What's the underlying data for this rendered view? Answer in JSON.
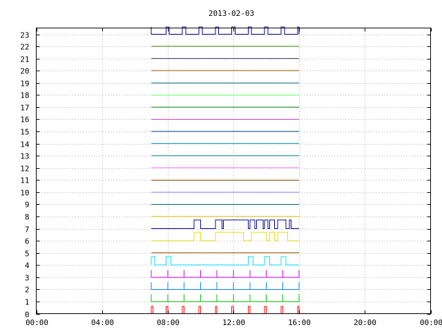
{
  "chart_data": {
    "type": "line",
    "title": "2013-02-03",
    "xlabel": "",
    "ylabel": "",
    "x_ticks": [
      "00:00",
      "04:00",
      "08:00",
      "12:00",
      "16:00",
      "20:00",
      "00:00"
    ],
    "y_ticks": [
      "0",
      "1",
      "2",
      "3",
      "4",
      "5",
      "6",
      "7",
      "8",
      "9",
      "10",
      "11",
      "12",
      "13",
      "14",
      "15",
      "16",
      "17",
      "18",
      "19",
      "20",
      "21",
      "22",
      "23"
    ],
    "xlim_hours": [
      0,
      24
    ],
    "ylim": [
      0,
      23
    ],
    "grid": true,
    "legend": "none",
    "series": [
      {
        "channel": 0,
        "color": "#ff0000",
        "style": "pulses",
        "points": [
          [
            7.0,
            0
          ],
          [
            7.0,
            0.6
          ],
          [
            7.1,
            0.6
          ],
          [
            7.1,
            0
          ],
          [
            7.9,
            0
          ],
          [
            7.9,
            0.6
          ],
          [
            8.0,
            0.6
          ],
          [
            8.0,
            0
          ],
          [
            8.9,
            0
          ],
          [
            8.9,
            0.6
          ],
          [
            9.0,
            0.6
          ],
          [
            9.0,
            0
          ],
          [
            9.9,
            0
          ],
          [
            9.9,
            0.6
          ],
          [
            10.0,
            0.6
          ],
          [
            10.0,
            0
          ],
          [
            10.9,
            0
          ],
          [
            10.9,
            0.6
          ],
          [
            11.0,
            0.6
          ],
          [
            11.0,
            0
          ],
          [
            11.9,
            0
          ],
          [
            11.9,
            0.6
          ],
          [
            12.0,
            0.6
          ],
          [
            12.0,
            0
          ],
          [
            12.9,
            0
          ],
          [
            12.9,
            0.6
          ],
          [
            13.0,
            0.6
          ],
          [
            13.0,
            0
          ],
          [
            13.9,
            0
          ],
          [
            13.9,
            0.6
          ],
          [
            14.0,
            0.6
          ],
          [
            14.0,
            0
          ],
          [
            14.9,
            0
          ],
          [
            14.9,
            0.6
          ],
          [
            15.0,
            0.6
          ],
          [
            15.0,
            0
          ],
          [
            15.9,
            0
          ],
          [
            15.9,
            0.6
          ],
          [
            16.0,
            0.6
          ],
          [
            16.0,
            0
          ]
        ]
      },
      {
        "channel": 1,
        "color": "#00c000",
        "style": "pulses",
        "points": [
          [
            7.0,
            1
          ],
          [
            7.0,
            1.6
          ],
          [
            7.0,
            1
          ],
          [
            8.0,
            1
          ],
          [
            8.0,
            1.6
          ],
          [
            8.0,
            1
          ],
          [
            9.0,
            1
          ],
          [
            9.0,
            1.6
          ],
          [
            9.0,
            1
          ],
          [
            10.0,
            1
          ],
          [
            10.0,
            1.6
          ],
          [
            10.0,
            1
          ],
          [
            11.0,
            1
          ],
          [
            11.0,
            1.6
          ],
          [
            11.0,
            1
          ],
          [
            12.0,
            1
          ],
          [
            12.0,
            1.6
          ],
          [
            12.0,
            1
          ],
          [
            13.0,
            1
          ],
          [
            13.0,
            1.6
          ],
          [
            13.0,
            1
          ],
          [
            14.0,
            1
          ],
          [
            14.0,
            1.6
          ],
          [
            14.0,
            1
          ],
          [
            15.0,
            1
          ],
          [
            15.0,
            1.6
          ],
          [
            15.0,
            1
          ],
          [
            16.0,
            1
          ],
          [
            16.0,
            1.6
          ],
          [
            16.0,
            1
          ]
        ]
      },
      {
        "channel": 2,
        "color": "#0080ff",
        "style": "pulses",
        "points": [
          [
            7.0,
            2
          ],
          [
            7.0,
            2.6
          ],
          [
            7.0,
            2
          ],
          [
            8.0,
            2
          ],
          [
            8.0,
            2.6
          ],
          [
            8.0,
            2
          ],
          [
            9.0,
            2
          ],
          [
            9.0,
            2.6
          ],
          [
            9.0,
            2
          ],
          [
            10.0,
            2
          ],
          [
            10.0,
            2.6
          ],
          [
            10.0,
            2
          ],
          [
            11.0,
            2
          ],
          [
            11.0,
            2.6
          ],
          [
            11.0,
            2
          ],
          [
            12.0,
            2
          ],
          [
            12.0,
            2.6
          ],
          [
            12.0,
            2
          ],
          [
            13.0,
            2
          ],
          [
            13.0,
            2.6
          ],
          [
            13.0,
            2
          ],
          [
            14.0,
            2
          ],
          [
            14.0,
            2.6
          ],
          [
            14.0,
            2
          ],
          [
            15.0,
            2
          ],
          [
            15.0,
            2.6
          ],
          [
            15.0,
            2
          ],
          [
            16.0,
            2
          ],
          [
            16.0,
            2.6
          ],
          [
            16.0,
            2
          ]
        ]
      },
      {
        "channel": 3,
        "color": "#c000ff",
        "style": "pulses",
        "points": [
          [
            7.0,
            3
          ],
          [
            7.0,
            3.6
          ],
          [
            7.0,
            3
          ],
          [
            8.0,
            3
          ],
          [
            8.0,
            3.6
          ],
          [
            8.0,
            3
          ],
          [
            9.0,
            3
          ],
          [
            9.0,
            3.6
          ],
          [
            9.0,
            3
          ],
          [
            10.0,
            3
          ],
          [
            10.0,
            3.6
          ],
          [
            10.0,
            3
          ],
          [
            11.0,
            3
          ],
          [
            11.0,
            3.6
          ],
          [
            11.0,
            3
          ],
          [
            12.0,
            3
          ],
          [
            12.0,
            3.6
          ],
          [
            12.0,
            3
          ],
          [
            13.0,
            3
          ],
          [
            13.0,
            3.6
          ],
          [
            13.0,
            3
          ],
          [
            14.0,
            3
          ],
          [
            14.0,
            3.6
          ],
          [
            14.0,
            3
          ],
          [
            15.0,
            3
          ],
          [
            15.0,
            3.6
          ],
          [
            15.0,
            3
          ],
          [
            16.0,
            3
          ],
          [
            16.0,
            3.6
          ],
          [
            16.0,
            3
          ]
        ]
      },
      {
        "channel": 4,
        "color": "#00e0ff",
        "style": "steps",
        "points": [
          [
            7.0,
            4
          ],
          [
            7.0,
            4.7
          ],
          [
            7.2,
            4.7
          ],
          [
            7.2,
            4
          ],
          [
            7.9,
            4
          ],
          [
            7.9,
            4.7
          ],
          [
            8.2,
            4.7
          ],
          [
            8.2,
            4
          ],
          [
            12.9,
            4
          ],
          [
            12.9,
            4.7
          ],
          [
            13.2,
            4.7
          ],
          [
            13.2,
            4
          ],
          [
            13.9,
            4
          ],
          [
            13.9,
            4.7
          ],
          [
            14.2,
            4.7
          ],
          [
            14.2,
            4
          ],
          [
            14.9,
            4
          ],
          [
            14.9,
            4.7
          ],
          [
            15.2,
            4.7
          ],
          [
            15.2,
            4
          ],
          [
            16.0,
            4
          ]
        ]
      },
      {
        "channel": 5,
        "color": "#a05a00",
        "style": "flat",
        "points": [
          [
            7.0,
            5
          ],
          [
            16.0,
            5
          ]
        ]
      },
      {
        "channel": 6,
        "color": "#e0e000",
        "style": "steps",
        "points": [
          [
            7.0,
            6
          ],
          [
            9.6,
            6
          ],
          [
            9.6,
            6.7
          ],
          [
            10.0,
            6.7
          ],
          [
            10.0,
            6
          ],
          [
            10.9,
            6
          ],
          [
            10.9,
            6.7
          ],
          [
            12.6,
            6.7
          ],
          [
            12.6,
            6
          ],
          [
            13.1,
            6
          ],
          [
            13.1,
            6.7
          ],
          [
            14.0,
            6.7
          ],
          [
            14.0,
            6
          ],
          [
            14.2,
            6
          ],
          [
            14.2,
            6.7
          ],
          [
            14.5,
            6.7
          ],
          [
            14.5,
            6
          ],
          [
            14.7,
            6
          ],
          [
            14.7,
            6.7
          ],
          [
            15.3,
            6.7
          ],
          [
            15.3,
            6
          ],
          [
            16.0,
            6
          ]
        ]
      },
      {
        "channel": 7,
        "color": "#000090",
        "style": "steps",
        "points": [
          [
            7.0,
            7
          ],
          [
            9.6,
            7
          ],
          [
            9.6,
            7.7
          ],
          [
            10.0,
            7.7
          ],
          [
            10.0,
            7
          ],
          [
            10.9,
            7
          ],
          [
            10.9,
            7.7
          ],
          [
            11.3,
            7.7
          ],
          [
            11.3,
            7
          ],
          [
            11.4,
            7
          ],
          [
            11.4,
            7.7
          ],
          [
            12.9,
            7.7
          ],
          [
            12.9,
            7
          ],
          [
            13.0,
            7
          ],
          [
            13.0,
            7.7
          ],
          [
            13.3,
            7.7
          ],
          [
            13.3,
            7
          ],
          [
            13.4,
            7
          ],
          [
            13.4,
            7.7
          ],
          [
            13.8,
            7.7
          ],
          [
            13.8,
            7
          ],
          [
            13.9,
            7
          ],
          [
            13.9,
            7.7
          ],
          [
            14.1,
            7.7
          ],
          [
            14.1,
            7
          ],
          [
            14.2,
            7
          ],
          [
            14.2,
            7.7
          ],
          [
            14.5,
            7.7
          ],
          [
            14.5,
            7
          ],
          [
            14.7,
            7
          ],
          [
            14.7,
            7.7
          ],
          [
            15.2,
            7.7
          ],
          [
            15.2,
            7
          ],
          [
            15.4,
            7
          ],
          [
            15.4,
            7.7
          ],
          [
            15.5,
            7.7
          ],
          [
            15.5,
            7
          ],
          [
            16.0,
            7
          ]
        ]
      },
      {
        "channel": 8,
        "color": "#e0c000",
        "style": "flat",
        "points": [
          [
            7.0,
            8
          ],
          [
            16.0,
            8
          ]
        ]
      },
      {
        "channel": 9,
        "color": "#006060",
        "style": "flat",
        "points": [
          [
            7.0,
            9
          ],
          [
            16.0,
            9
          ]
        ]
      },
      {
        "channel": 10,
        "color": "#8080ff",
        "style": "flat",
        "points": [
          [
            7.0,
            10
          ],
          [
            16.0,
            10
          ]
        ]
      },
      {
        "channel": 11,
        "color": "#804000",
        "style": "flat",
        "points": [
          [
            7.0,
            11
          ],
          [
            16.0,
            11
          ]
        ]
      },
      {
        "channel": 12,
        "color": "#ff80ff",
        "style": "flat",
        "points": [
          [
            7.0,
            12
          ],
          [
            16.0,
            12
          ]
        ]
      },
      {
        "channel": 13,
        "color": "#008080",
        "style": "flat",
        "points": [
          [
            7.0,
            13
          ],
          [
            16.0,
            13
          ]
        ]
      },
      {
        "channel": 14,
        "color": "#00a0c0",
        "style": "flat",
        "points": [
          [
            7.0,
            14
          ],
          [
            16.0,
            14
          ]
        ]
      },
      {
        "channel": 15,
        "color": "#004080",
        "style": "flat",
        "points": [
          [
            7.0,
            15
          ],
          [
            16.0,
            15
          ]
        ]
      },
      {
        "channel": 16,
        "color": "#c040c0",
        "style": "flat",
        "points": [
          [
            7.0,
            16
          ],
          [
            16.0,
            16
          ]
        ]
      },
      {
        "channel": 17,
        "color": "#008000",
        "style": "flat",
        "points": [
          [
            7.0,
            17
          ],
          [
            16.0,
            17
          ]
        ]
      },
      {
        "channel": 18,
        "color": "#60ff60",
        "style": "flat",
        "points": [
          [
            7.0,
            18
          ],
          [
            16.0,
            18
          ]
        ]
      },
      {
        "channel": 19,
        "color": "#006080",
        "style": "flat",
        "points": [
          [
            7.0,
            19
          ],
          [
            16.0,
            19
          ]
        ]
      },
      {
        "channel": 20,
        "color": "#a06000",
        "style": "flat",
        "points": [
          [
            7.0,
            20
          ],
          [
            16.0,
            20
          ]
        ]
      },
      {
        "channel": 21,
        "color": "#404080",
        "style": "flat",
        "points": [
          [
            7.0,
            21
          ],
          [
            16.0,
            21
          ]
        ]
      },
      {
        "channel": 22,
        "color": "#408000",
        "style": "flat",
        "points": [
          [
            7.0,
            22
          ],
          [
            16.0,
            22
          ]
        ]
      },
      {
        "channel": 23,
        "color": "#000090",
        "style": "steps",
        "points": [
          [
            7.0,
            23.6
          ],
          [
            7.0,
            23
          ],
          [
            7.9,
            23
          ],
          [
            7.9,
            23.6
          ],
          [
            8.1,
            23.6
          ],
          [
            8.1,
            23
          ],
          [
            8.9,
            23
          ],
          [
            8.9,
            23.6
          ],
          [
            9.1,
            23.6
          ],
          [
            9.1,
            23
          ],
          [
            9.9,
            23
          ],
          [
            9.9,
            23.6
          ],
          [
            10.1,
            23.6
          ],
          [
            10.1,
            23
          ],
          [
            10.9,
            23
          ],
          [
            10.9,
            23.6
          ],
          [
            11.1,
            23.6
          ],
          [
            11.1,
            23
          ],
          [
            11.9,
            23
          ],
          [
            11.9,
            23.6
          ],
          [
            12.1,
            23.6
          ],
          [
            12.1,
            23
          ],
          [
            12.9,
            23
          ],
          [
            12.9,
            23.6
          ],
          [
            13.1,
            23.6
          ],
          [
            13.1,
            23
          ],
          [
            13.9,
            23
          ],
          [
            13.9,
            23.6
          ],
          [
            14.1,
            23.6
          ],
          [
            14.1,
            23
          ],
          [
            14.9,
            23
          ],
          [
            14.9,
            23.6
          ],
          [
            15.1,
            23.6
          ],
          [
            15.1,
            23
          ],
          [
            15.9,
            23
          ],
          [
            15.9,
            23.6
          ],
          [
            16.0,
            23.6
          ],
          [
            16.0,
            23
          ]
        ]
      }
    ]
  }
}
